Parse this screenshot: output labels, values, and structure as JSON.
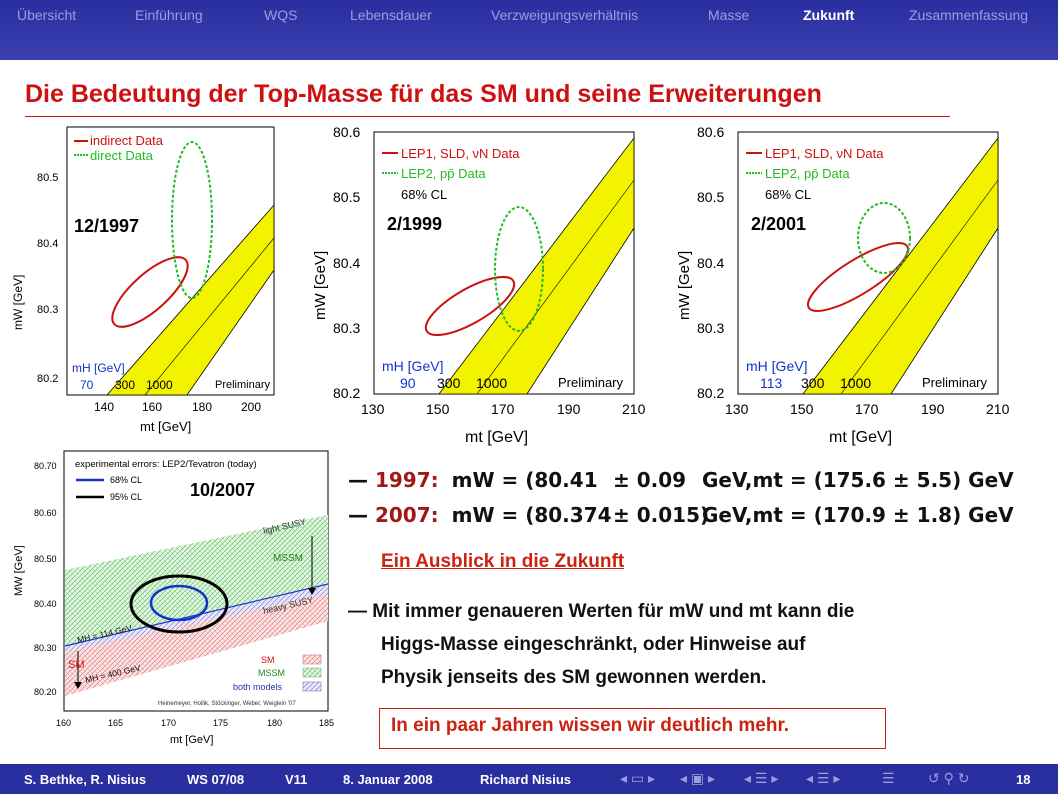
{
  "nav": {
    "items": [
      "Übersicht",
      "Einführung",
      "WQS",
      "Lebensdauer",
      "Verzweigungsverhältnis",
      "Masse",
      "Zukunft",
      "Zusammenfassung"
    ],
    "active": "Zukunft"
  },
  "slide": {
    "title": "Die Bedeutung der Top-Masse für das SM und seine Erweiterungen"
  },
  "plots": {
    "p1997": {
      "label": "12/1997",
      "legend": [
        "indirect Data",
        "direct Data"
      ],
      "yticks": [
        "80.5",
        "80.4",
        "80.3",
        "80.2"
      ],
      "xticks": [
        "140",
        "160",
        "180",
        "200"
      ],
      "xlabel": "mt  [GeV]",
      "ylabel": "mW  [GeV]",
      "mh_label": "mH [GeV]",
      "mh_values": [
        "70",
        "300",
        "1000"
      ],
      "preliminary": "Preliminary"
    },
    "p1999": {
      "label": "2/1999",
      "legend": [
        "LEP1, SLD, νN Data",
        "LEP2, pp̄ Data",
        "68% CL"
      ],
      "yticks": [
        "80.6",
        "80.5",
        "80.4",
        "80.3",
        "80.2"
      ],
      "xticks": [
        "130",
        "150",
        "170",
        "190",
        "210"
      ],
      "xlabel": "mt  [GeV]",
      "ylabel": "mW  [GeV]",
      "mh_label": "mH [GeV]",
      "mh_values": [
        "90",
        "300",
        "1000"
      ],
      "preliminary": "Preliminary"
    },
    "p2001": {
      "label": "2/2001",
      "legend": [
        "LEP1, SLD, νN Data",
        "LEP2, pp̄ Data",
        "68% CL"
      ],
      "yticks": [
        "80.6",
        "80.5",
        "80.4",
        "80.3",
        "80.2"
      ],
      "xticks": [
        "130",
        "150",
        "170",
        "190",
        "210"
      ],
      "xlabel": "mt  [GeV]",
      "ylabel": "mW  [GeV]",
      "mh_label": "mH [GeV]",
      "mh_values": [
        "113",
        "300",
        "1000"
      ],
      "preliminary": "Preliminary"
    },
    "p2007": {
      "label": "10/2007",
      "legend_title": "experimental errors: LEP2/Tevatron (today)",
      "legend": [
        "68% CL",
        "95% CL"
      ],
      "yticks": [
        "80.70",
        "80.60",
        "80.50",
        "80.40",
        "80.30",
        "80.20"
      ],
      "xticks": [
        "160",
        "165",
        "170",
        "175",
        "180",
        "185"
      ],
      "xlabel": "mt [GeV]",
      "ylabel": "MW [GeV]",
      "light_susy": "light SUSY",
      "heavy_susy": "heavy SUSY",
      "mssm": "MSSM",
      "sm": "SM",
      "mh_low": "MH = 114 GeV",
      "mh_high": "MH = 400 GeV",
      "models": [
        "SM",
        "MSSM",
        "both models"
      ],
      "credit": "Heinemeyer, Hollik, Stöckinger, Weber, Weiglein '07"
    }
  },
  "results": {
    "r1997": {
      "year": "1997",
      "mw": "(80.41",
      "mw_err": "± 0.09",
      "mt": "GeV,mt = (175.6 ± 5.5) GeV"
    },
    "r2007": {
      "year": "2007",
      "mw": "(80.374",
      "mw_err": "± 0.015)",
      "mt": "GeV,mt = (170.9 ± 1.8) GeV"
    },
    "mw_symbol": "mW = "
  },
  "outlook": {
    "heading": "Ein Ausblick in die Zukunft",
    "line1": "Mit immer genaueren Werten für mW und mt kann die",
    "line2": "Higgs-Masse eingeschränkt, oder Hinweise auf",
    "line3": "Physik jenseits des SM gewonnen werden.",
    "boxed": "In ein paar Jahren wissen wir deutlich mehr."
  },
  "footer": {
    "authors": "S. Bethke, R. Nisius",
    "semester": "WS 07/08",
    "lecture": "V11",
    "date": "8. Januar 2008",
    "speaker": "Richard Nisius",
    "page": "18"
  },
  "colors": {
    "nav_bg": "#2a2fa0",
    "title_red": "#cc1111",
    "band_yellow": "#f3f300"
  }
}
